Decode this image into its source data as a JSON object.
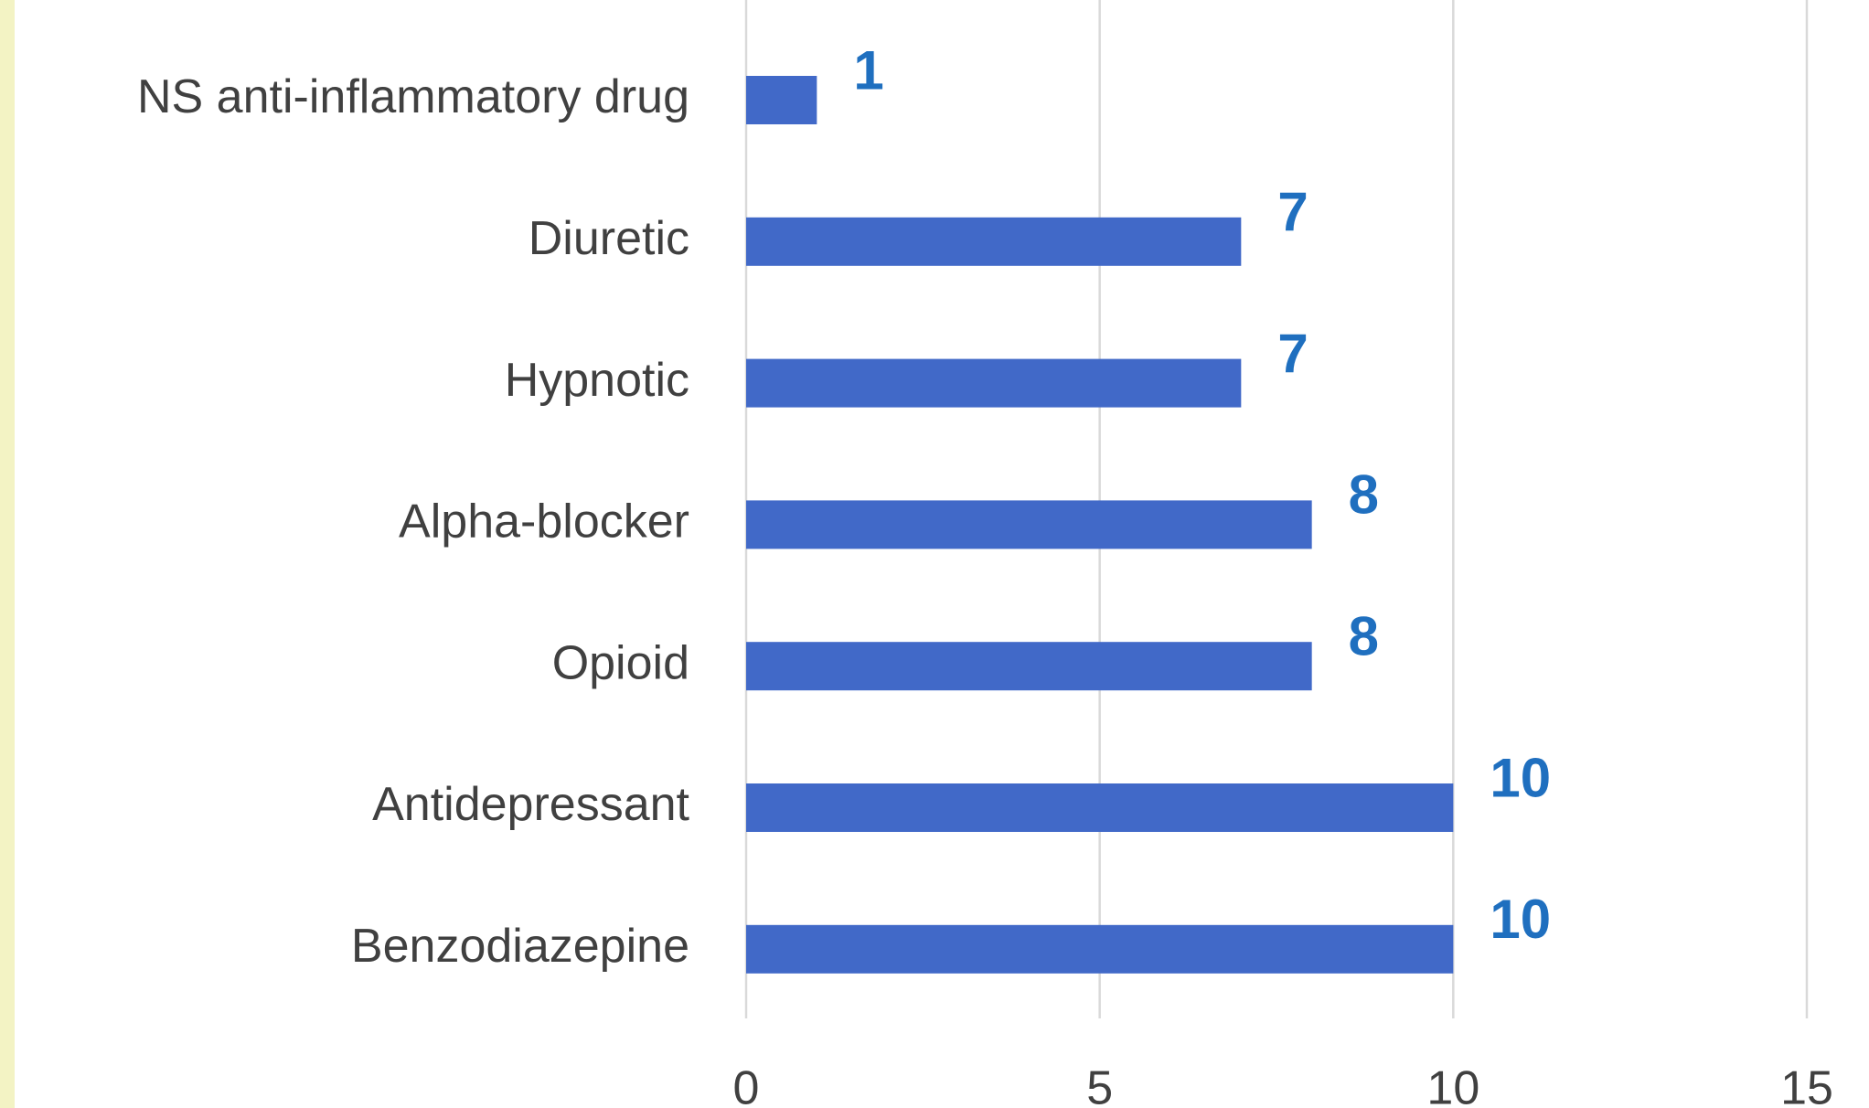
{
  "chart_data": {
    "type": "bar",
    "orientation": "horizontal",
    "categories": [
      "NS anti-inflammatory drug",
      "Diuretic",
      "Hypnotic",
      "Alpha-blocker",
      "Opioid",
      "Antidepressant",
      "Benzodiazepine"
    ],
    "values": [
      1,
      7,
      7,
      8,
      8,
      10,
      10
    ],
    "color": "#4169c8",
    "label_color": "#1f6fbf",
    "xlim": [
      0,
      15
    ],
    "xticks": [
      0,
      5,
      10,
      15
    ],
    "grid": true
  }
}
